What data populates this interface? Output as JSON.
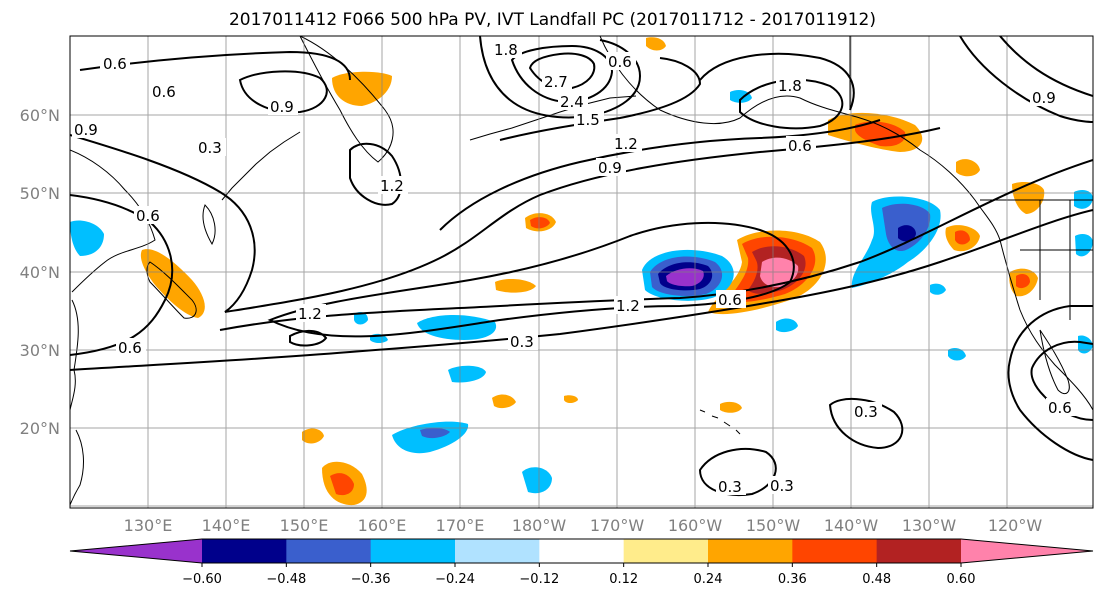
{
  "title": "2017011412 F066 500 hPa PV, IVT Landfall PC (2017011712 - 2017011912)",
  "lat_labels": [
    "60°N",
    "50°N",
    "40°N",
    "30°N",
    "20°N"
  ],
  "lon_labels": [
    "130°E",
    "140°E",
    "150°E",
    "160°E",
    "170°E",
    "180°W",
    "170°W",
    "160°W",
    "150°W",
    "140°W",
    "130°W",
    "120°W"
  ],
  "contour_labels": [
    "0.6",
    "0.6",
    "0.9",
    "0.9",
    "0.3",
    "1.2",
    "0.6",
    "1.8",
    "2.7",
    "2.4",
    "1.5",
    "1.2",
    "0.9",
    "1.8",
    "0.6",
    "1.2",
    "0.3",
    "1.2",
    "0.6",
    "0.6",
    "0.6",
    "0.3",
    "0.3",
    "0.3",
    "0.6",
    "0.9"
  ],
  "colorbar": {
    "ticks": [
      "−0.60",
      "−0.48",
      "−0.36",
      "−0.24",
      "−0.12",
      "0.12",
      "0.24",
      "0.36",
      "0.48",
      "0.60"
    ],
    "colors": [
      "#9932cc",
      "#00008b",
      "#3a5fcd",
      "#00bfff",
      "#b0e2ff",
      "#ffffff",
      "#ffec8b",
      "#ffa500",
      "#ff4500",
      "#b22222",
      "#ff82ab"
    ]
  },
  "colors": {
    "background": "#ffffff",
    "grid": "#808080",
    "coast": "#000000",
    "contour": "#000000"
  }
}
